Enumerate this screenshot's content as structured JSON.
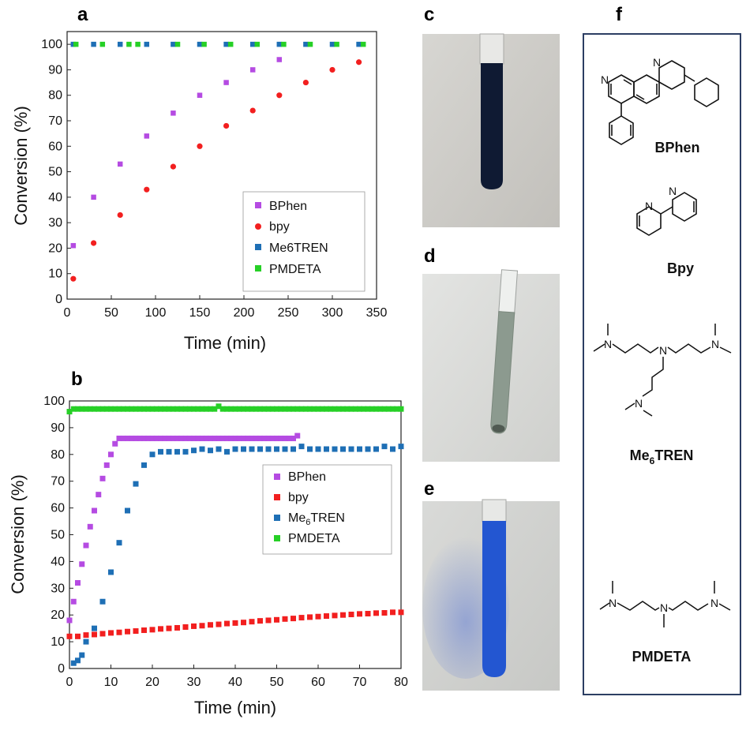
{
  "panel_labels": {
    "a": "a",
    "b": "b",
    "c": "c",
    "d": "d",
    "e": "e",
    "f": "f"
  },
  "colors": {
    "BPhen": "#b54be2",
    "bpy": "#f21f1f",
    "Me6TREN": "#1e6fb5",
    "PMDETA": "#26d026",
    "tube_c": "#0f1a33",
    "tube_d": "#8c9a8f",
    "tube_e": "#2356d1",
    "frame": "#2c3e63"
  },
  "chart_data": [
    {
      "id": "a",
      "type": "scatter",
      "xlabel": "Time (min)",
      "ylabel": "Conversion (%)",
      "xlim": [
        0,
        350
      ],
      "ylim": [
        0,
        105
      ],
      "xticks": [
        0,
        50,
        100,
        150,
        200,
        250,
        300,
        350
      ],
      "yticks": [
        0,
        10,
        20,
        30,
        40,
        50,
        60,
        70,
        80,
        90,
        100
      ],
      "legend_position": "center-right",
      "series": [
        {
          "name": "BPhen",
          "color_key": "BPhen",
          "x": [
            7,
            30,
            60,
            90,
            120,
            150,
            180,
            210,
            240
          ],
          "y": [
            21,
            40,
            53,
            64,
            73,
            80,
            85,
            90,
            94
          ]
        },
        {
          "name": "bpy",
          "color_key": "bpy",
          "x": [
            7,
            30,
            60,
            90,
            120,
            150,
            180,
            210,
            240,
            270,
            300,
            330
          ],
          "y": [
            8,
            22,
            33,
            43,
            52,
            60,
            68,
            74,
            80,
            85,
            90,
            93
          ]
        },
        {
          "name": "Me6TREN",
          "color_key": "Me6TREN",
          "x": [
            7,
            30,
            60,
            90,
            120,
            150,
            180,
            210,
            240,
            270,
            300,
            330
          ],
          "y": [
            100,
            100,
            100,
            100,
            100,
            100,
            100,
            100,
            100,
            100,
            100,
            100
          ]
        },
        {
          "name": "PMDETA",
          "color_key": "PMDETA",
          "x": [
            10,
            40,
            70,
            80,
            125,
            155,
            185,
            215,
            245,
            275,
            305,
            335
          ],
          "y": [
            100,
            100,
            100,
            100,
            100,
            100,
            100,
            100,
            100,
            100,
            100,
            100
          ]
        }
      ]
    },
    {
      "id": "b",
      "type": "scatter",
      "xlabel": "Time (min)",
      "ylabel": "Conversion (%)",
      "xlim": [
        0,
        80
      ],
      "ylim": [
        0,
        100
      ],
      "xticks": [
        0,
        10,
        20,
        30,
        40,
        50,
        60,
        70,
        80
      ],
      "yticks": [
        0,
        10,
        20,
        30,
        40,
        50,
        60,
        70,
        80,
        90,
        100
      ],
      "legend_position": "center-right",
      "series": [
        {
          "name": "BPhen",
          "color_key": "BPhen",
          "x": [
            0,
            1,
            2,
            3,
            4,
            5,
            6,
            7,
            8,
            9,
            10,
            11,
            12,
            13,
            14,
            15,
            16,
            17,
            18,
            19,
            20,
            21,
            22,
            23,
            24,
            25,
            26,
            27,
            28,
            29,
            30,
            31,
            32,
            33,
            34,
            35,
            36,
            37,
            38,
            39,
            40,
            41,
            42,
            43,
            44,
            45,
            46,
            47,
            48,
            49,
            50,
            51,
            52,
            53,
            54,
            55
          ],
          "y": [
            18,
            25,
            32,
            39,
            46,
            53,
            59,
            65,
            71,
            76,
            80,
            84,
            86,
            86,
            86,
            86,
            86,
            86,
            86,
            86,
            86,
            86,
            86,
            86,
            86,
            86,
            86,
            86,
            86,
            86,
            86,
            86,
            86,
            86,
            86,
            86,
            86,
            86,
            86,
            86,
            86,
            86,
            86,
            86,
            86,
            86,
            86,
            86,
            86,
            86,
            86,
            86,
            86,
            86,
            86,
            87
          ]
        },
        {
          "name": "bpy",
          "color_key": "bpy",
          "x": [
            0,
            2,
            4,
            6,
            8,
            10,
            12,
            14,
            16,
            18,
            20,
            22,
            24,
            26,
            28,
            30,
            32,
            34,
            36,
            38,
            40,
            42,
            44,
            46,
            48,
            50,
            52,
            54,
            56,
            58,
            60,
            62,
            64,
            66,
            68,
            70,
            72,
            74,
            76,
            78,
            80
          ],
          "y": [
            12,
            12,
            12.5,
            12.7,
            13,
            13.3,
            13.5,
            13.8,
            14,
            14.3,
            14.5,
            14.8,
            15,
            15.2,
            15.5,
            15.8,
            16,
            16.3,
            16.5,
            16.8,
            17,
            17.2,
            17.5,
            17.8,
            18,
            18.2,
            18.5,
            18.7,
            19,
            19.2,
            19.4,
            19.6,
            19.8,
            20,
            20.2,
            20.4,
            20.5,
            20.7,
            20.8,
            21,
            21
          ]
        },
        {
          "name": "Me6TREN",
          "color_key": "Me6TREN",
          "x": [
            1,
            2,
            3,
            4,
            6,
            8,
            10,
            12,
            14,
            16,
            18,
            20,
            22,
            24,
            26,
            28,
            30,
            32,
            34,
            36,
            38,
            40,
            42,
            44,
            46,
            48,
            50,
            52,
            54,
            56,
            58,
            60,
            62,
            64,
            66,
            68,
            70,
            72,
            74,
            76,
            78,
            80
          ],
          "y": [
            2,
            3,
            5,
            10,
            15,
            25,
            36,
            47,
            59,
            69,
            76,
            80,
            81,
            81,
            81,
            81,
            81.5,
            82,
            81.5,
            82,
            81,
            82,
            82,
            82,
            82,
            82,
            82,
            82,
            82,
            83,
            82,
            82,
            82,
            82,
            82,
            82,
            82,
            82,
            82,
            83,
            82,
            83
          ]
        },
        {
          "name": "PMDETA",
          "color_key": "PMDETA",
          "x": [
            0,
            1,
            2,
            3,
            4,
            5,
            6,
            7,
            8,
            9,
            10,
            11,
            12,
            13,
            14,
            15,
            16,
            17,
            18,
            19,
            20,
            21,
            22,
            23,
            24,
            25,
            26,
            27,
            28,
            29,
            30,
            31,
            32,
            33,
            34,
            35,
            36,
            37,
            38,
            39,
            40,
            41,
            42,
            43,
            44,
            45,
            46,
            47,
            48,
            49,
            50,
            51,
            52,
            53,
            54,
            55,
            56,
            57,
            58,
            59,
            60,
            61,
            62,
            63,
            64,
            65,
            66,
            67,
            68,
            69,
            70,
            71,
            72,
            73,
            74,
            75,
            76,
            77,
            78,
            79,
            80
          ],
          "y": [
            96,
            97,
            97,
            97,
            97,
            97,
            97,
            97,
            97,
            97,
            97,
            97,
            97,
            97,
            97,
            97,
            97,
            97,
            97,
            97,
            97,
            97,
            97,
            97,
            97,
            97,
            97,
            97,
            97,
            97,
            97,
            97,
            97,
            97,
            97,
            97,
            98,
            97,
            97,
            97,
            97,
            97,
            97,
            97,
            97,
            97,
            97,
            97,
            97,
            97,
            97,
            97,
            97,
            97,
            97,
            97,
            97,
            97,
            97,
            97,
            97,
            97,
            97,
            97,
            97,
            97,
            97,
            97,
            97,
            97,
            97,
            97,
            97,
            97,
            97,
            97,
            97,
            97,
            97,
            97,
            97
          ]
        }
      ]
    }
  ],
  "molecules": {
    "bphen": {
      "label": "BPhen",
      "atoms": {
        "n": "N"
      }
    },
    "bpy": {
      "label": "Bpy",
      "atoms": {
        "n": "N"
      }
    },
    "me6tren": {
      "label_main": "Me",
      "label_sub": "6",
      "label_rest": "TREN",
      "atoms": {
        "n": "N"
      }
    },
    "pmdeta": {
      "label": "PMDETA",
      "atoms": {
        "n": "N"
      }
    }
  }
}
